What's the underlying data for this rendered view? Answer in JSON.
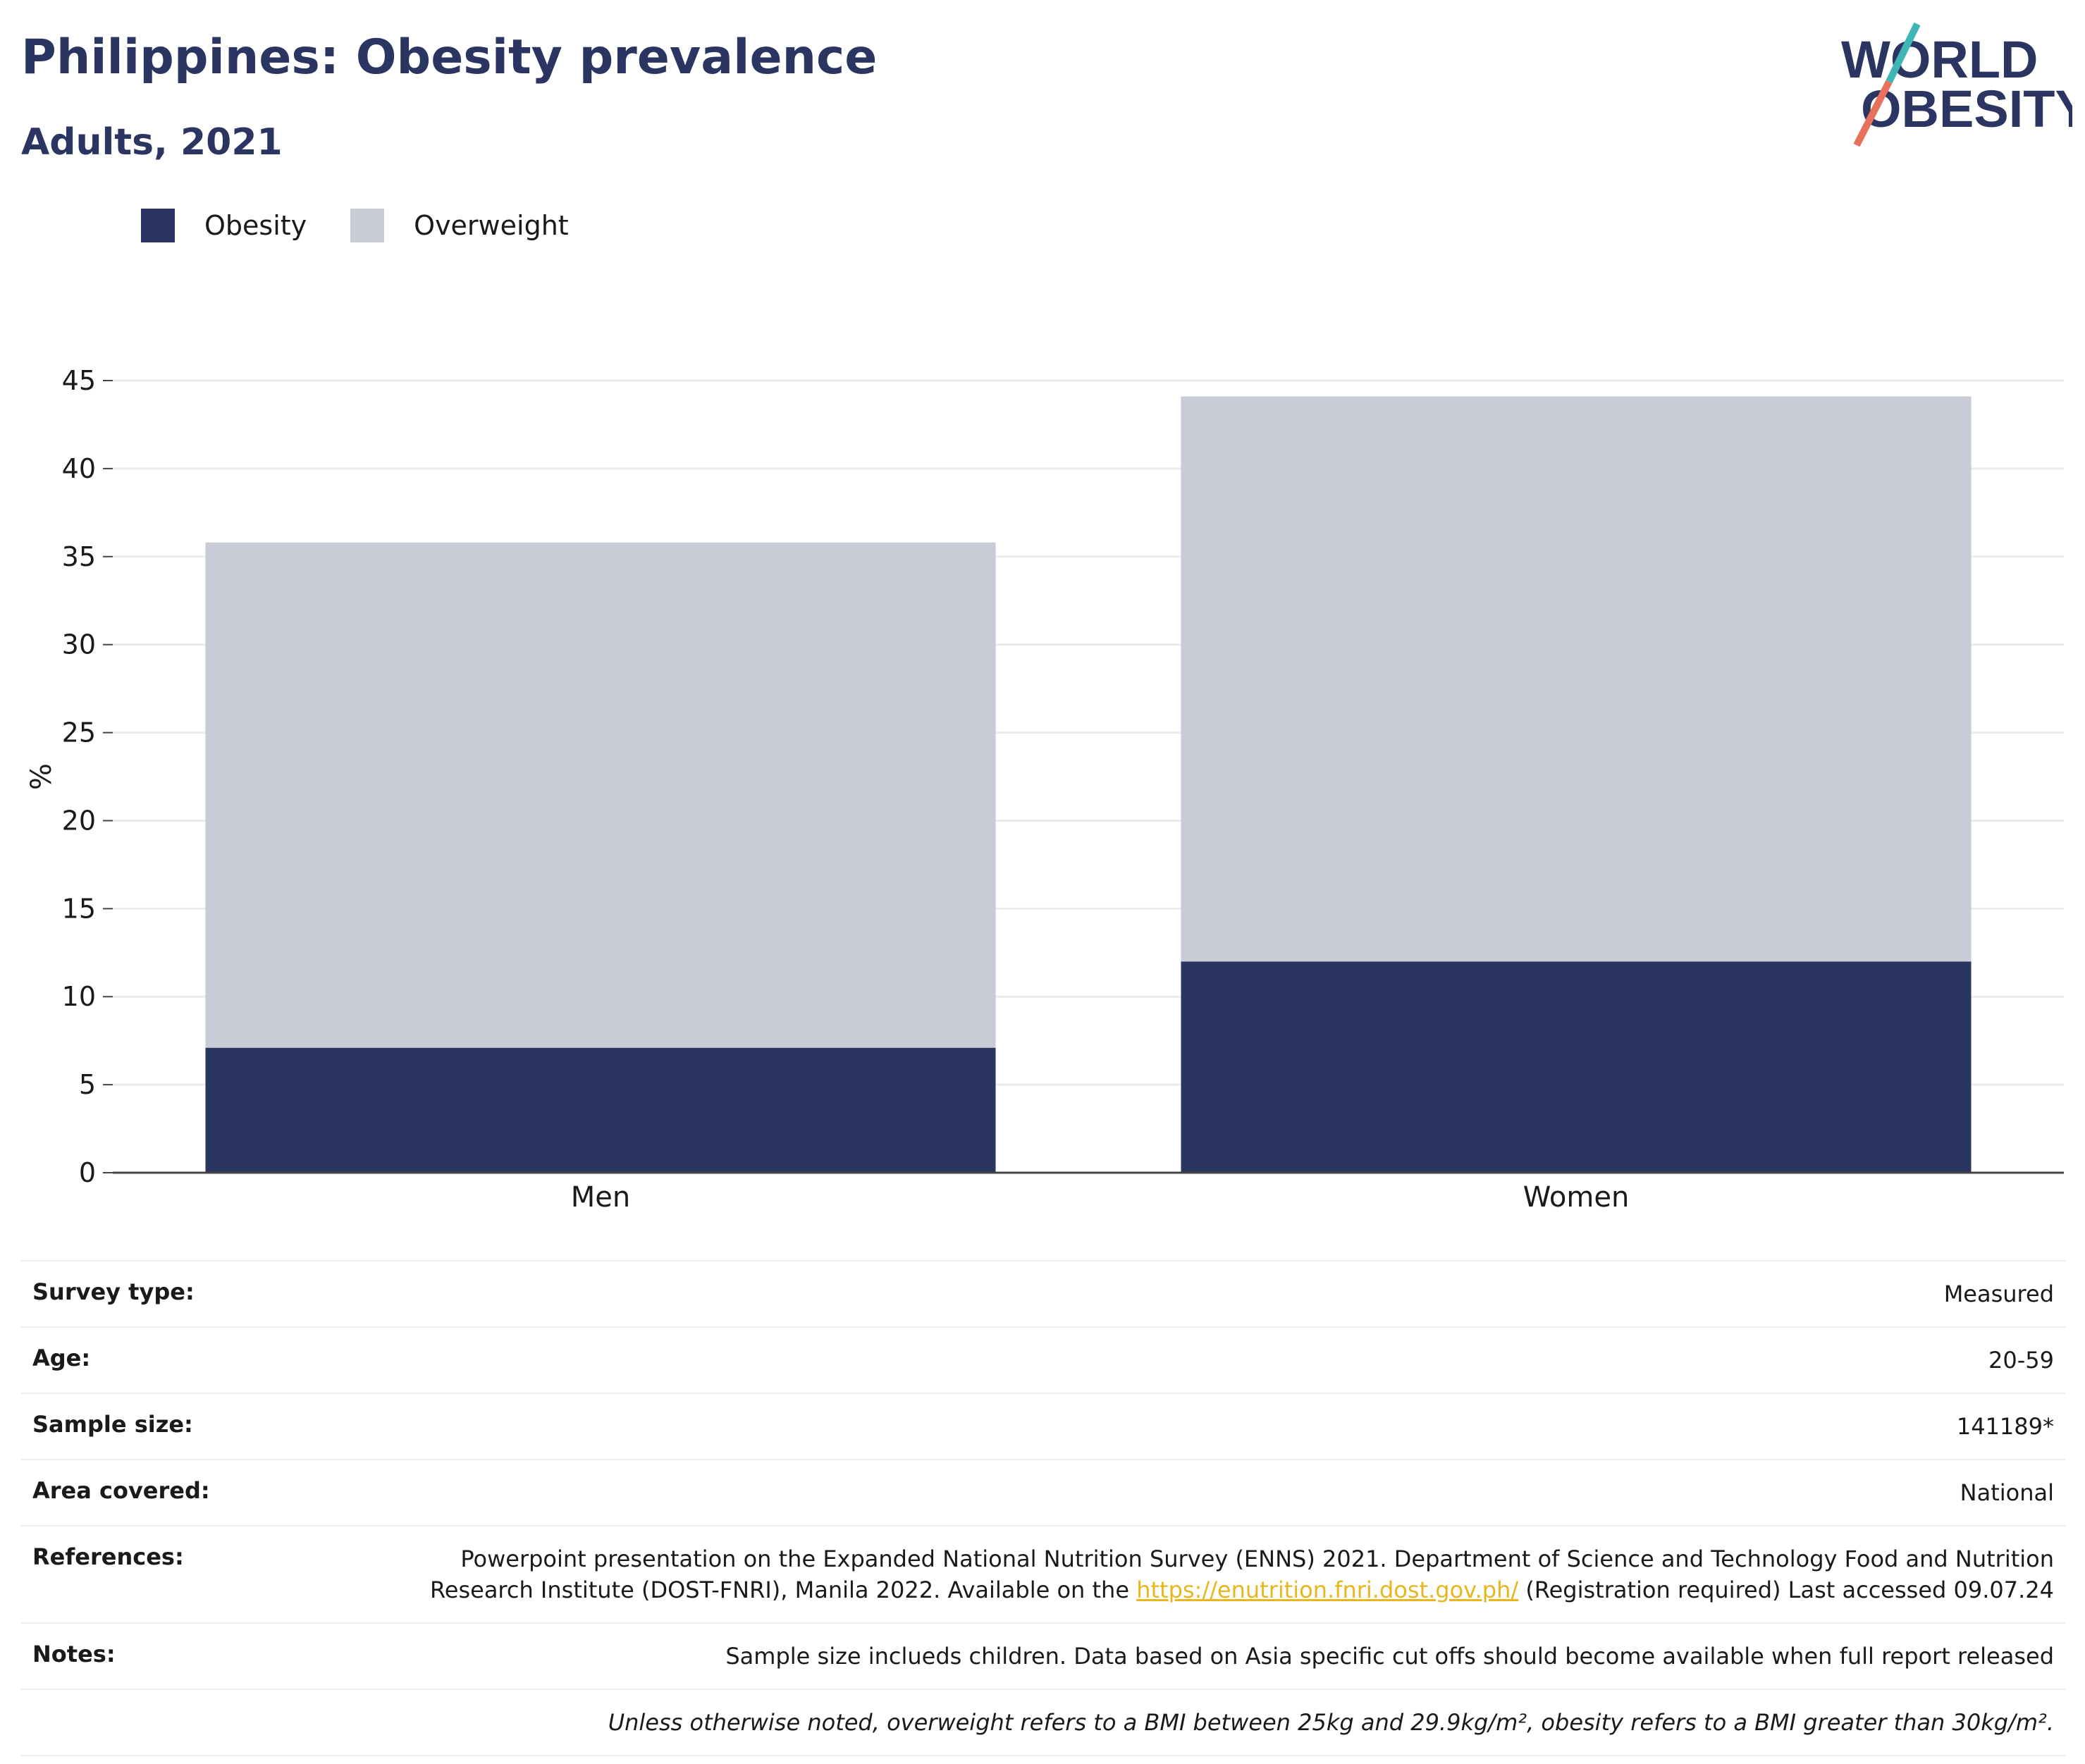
{
  "title": "Philippines: Obesity prevalence",
  "subtitle": "Adults, 2021",
  "logo": {
    "line1": "WORLD",
    "line2": "OBESITY"
  },
  "colors": {
    "obesity": "#2b3562",
    "overweight": "#c9cbd6",
    "grid": "#ebebeb",
    "axis": "#444444",
    "link": "#e8b61f"
  },
  "chart_data": {
    "type": "bar",
    "stacked": true,
    "categories": [
      "Men",
      "Women"
    ],
    "series": [
      {
        "name": "Obesity",
        "values": [
          7.1,
          12.0
        ]
      },
      {
        "name": "Overweight",
        "values": [
          28.7,
          32.1
        ]
      }
    ],
    "xlabel": "",
    "ylabel": "%",
    "ylim": [
      0,
      45
    ],
    "yticks": [
      0,
      5,
      10,
      15,
      20,
      25,
      30,
      35,
      40,
      45
    ],
    "grid": true,
    "legend": "top-left"
  },
  "info": [
    {
      "label": "Survey type:",
      "value": "Measured"
    },
    {
      "label": "Age:",
      "value": "20-59"
    },
    {
      "label": "Sample size:",
      "value": "141189*"
    },
    {
      "label": "Area covered:",
      "value": "National"
    },
    {
      "label": "References:",
      "value_pre": "Powerpoint presentation on the Expanded National Nutrition Survey (ENNS) 2021. Department of Science and Technology Food and Nutrition Research Institute (DOST-FNRI), Manila 2022. Available on the ",
      "link": "https://enutrition.fnri.dost.gov.ph/",
      "value_post": " (Registration required) Last accessed 09.07.24"
    },
    {
      "label": "Notes:",
      "value": "Sample size inclueds children. Data based on Asia specific cut offs should become available when full report released"
    }
  ],
  "disclaimer": "Unless otherwise noted, overweight refers to a BMI between 25kg and 29.9kg/m², obesity refers to a BMI greater than 30kg/m²."
}
